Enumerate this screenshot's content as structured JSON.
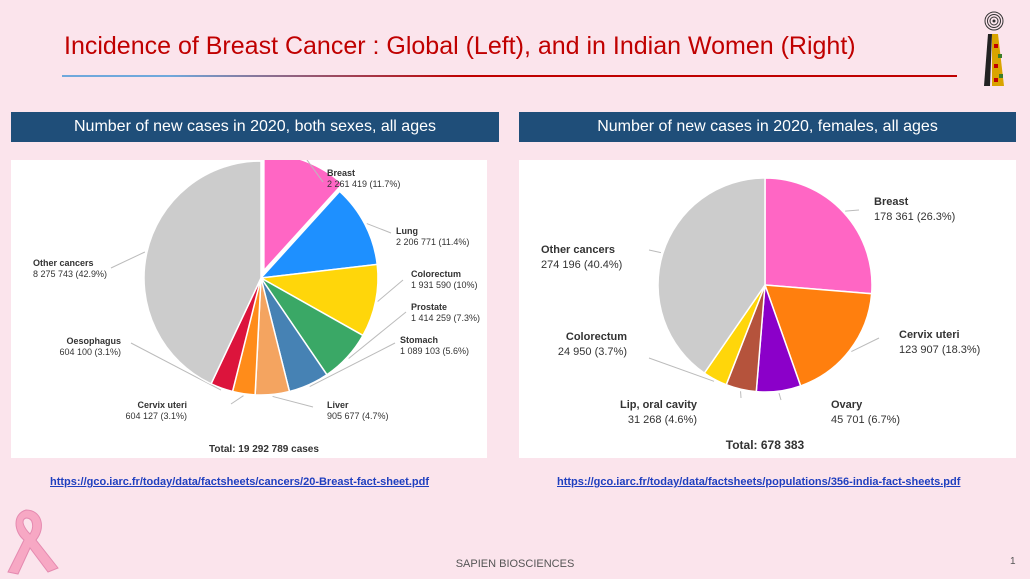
{
  "slide": {
    "title": "Incidence of Breast Cancer : Global (Left), and in Indian Women (Right)",
    "footer": "SAPIEN BIOSCIENCES",
    "page_number": "1",
    "colors": {
      "title": "#c00000",
      "header_bg": "#1f4e79",
      "background": "#fbe4ec"
    }
  },
  "left": {
    "header": "Number of new cases in 2020, both sexes, all ages",
    "link": "https://gco.iarc.fr/today/data/factsheets/cancers/20-Breast-fact-sheet.pdf"
  },
  "right": {
    "header": "Number of new cases in 2020, females, all ages",
    "link": "https://gco.iarc.fr/today/data/factsheets/populations/356-india-fact-sheets.pdf"
  },
  "chart_data": [
    {
      "type": "pie",
      "title": "Number of new cases in 2020, both sexes, all ages",
      "total_label": "Total: 19 292 789 cases",
      "slices": [
        {
          "name": "Breast",
          "value_label": "2 261 419 (11.7%)",
          "percent": 11.7,
          "color": "#ff66c4",
          "exploded": true
        },
        {
          "name": "Lung",
          "value_label": "2 206 771 (11.4%)",
          "percent": 11.4,
          "color": "#1e90ff"
        },
        {
          "name": "Colorectum",
          "value_label": "1 931 590 (10%)",
          "percent": 10.0,
          "color": "#ffd60a"
        },
        {
          "name": "Prostate",
          "value_label": "1 414 259 (7.3%)",
          "percent": 7.3,
          "color": "#3aa866"
        },
        {
          "name": "Stomach",
          "value_label": "1 089 103 (5.6%)",
          "percent": 5.6,
          "color": "#4682b4"
        },
        {
          "name": "Liver",
          "value_label": "905 677 (4.7%)",
          "percent": 4.7,
          "color": "#f4a460"
        },
        {
          "name": "Cervix uteri",
          "value_label": "604 127 (3.1%)",
          "percent": 3.1,
          "color": "#ff8c1a"
        },
        {
          "name": "Oesophagus",
          "value_label": "604 100 (3.1%)",
          "percent": 3.1,
          "color": "#dc143c"
        },
        {
          "name": "Other cancers",
          "value_label": "8 275 743 (42.9%)",
          "percent": 42.9,
          "color": "#cccccc"
        }
      ]
    },
    {
      "type": "pie",
      "title": "Number of new cases in 2020, females, all ages",
      "total_label": "Total: 678 383",
      "slices": [
        {
          "name": "Breast",
          "value_label": "178 361 (26.3%)",
          "percent": 26.3,
          "color": "#ff66c4"
        },
        {
          "name": "Cervix uteri",
          "value_label": "123 907 (18.3%)",
          "percent": 18.3,
          "color": "#ff7f0e"
        },
        {
          "name": "Ovary",
          "value_label": "45 701 (6.7%)",
          "percent": 6.7,
          "color": "#8b00c9"
        },
        {
          "name": "Lip, oral cavity",
          "value_label": "31 268 (4.6%)",
          "percent": 4.6,
          "color": "#b5533c"
        },
        {
          "name": "Colorectum",
          "value_label": "24 950 (3.7%)",
          "percent": 3.7,
          "color": "#ffd60a"
        },
        {
          "name": "Other cancers",
          "value_label": "274 196 (40.4%)",
          "percent": 40.4,
          "color": "#cccccc"
        }
      ]
    }
  ]
}
